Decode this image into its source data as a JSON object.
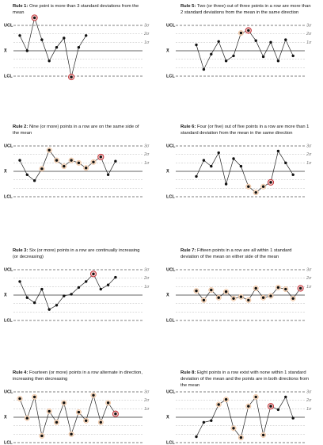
{
  "chart_data": [
    {
      "type": "line",
      "rule": "Rule 1:",
      "title": "One point is more than 3 standard deviations from the mean",
      "values": [
        1.8,
        0,
        3.9,
        1.3,
        -1.2,
        0.4,
        1.5,
        -3.1,
        0.4,
        1.8
      ],
      "highlighted": [
        2,
        7
      ],
      "pattern": [],
      "ylim": [
        -3,
        3
      ],
      "yticks": [
        {
          "value": 3,
          "label": "UCL"
        },
        {
          "value": 0,
          "label": "X̄"
        },
        {
          "value": -3,
          "label": "LCL"
        }
      ],
      "y2ticks": [
        {
          "value": 3,
          "label": "3σ"
        },
        {
          "value": 2,
          "label": "2σ"
        },
        {
          "value": 1,
          "label": "1σ"
        }
      ],
      "grid_lines": [
        2,
        1,
        -1,
        -2
      ]
    },
    {
      "type": "line",
      "rule": "Rule 2:",
      "title": "Nine (or more) points in a row are on the same side of the mean",
      "values": [
        1.3,
        -0.4,
        -1.1,
        0.3,
        2.5,
        1.3,
        0.6,
        1.3,
        1.0,
        0.4,
        1.1,
        1.7,
        -0.4,
        1.2
      ],
      "highlighted": [
        11
      ],
      "pattern": [
        3,
        4,
        5,
        6,
        7,
        8,
        9,
        10
      ],
      "ylim": [
        -3,
        3
      ],
      "yticks": [
        {
          "value": 3,
          "label": "UCL"
        },
        {
          "value": 0,
          "label": "X̄"
        },
        {
          "value": -3,
          "label": "LCL"
        }
      ],
      "y2ticks": [
        {
          "value": 3,
          "label": "3σ"
        },
        {
          "value": 2,
          "label": "2σ"
        },
        {
          "value": 1,
          "label": "1σ"
        }
      ],
      "grid_lines": [
        2,
        1,
        -1,
        -2
      ]
    },
    {
      "type": "line",
      "rule": "Rule 3:",
      "title": "Six (or more) points in a row are continually increasing (or decreasing)",
      "values": [
        1.6,
        -0.3,
        -0.9,
        0.7,
        -1.7,
        -1.2,
        -0.1,
        0.1,
        0.9,
        1.6,
        2.5,
        0.7,
        1.2,
        2.1
      ],
      "highlighted": [
        10
      ],
      "pattern": [],
      "ylim": [
        -3,
        3
      ],
      "yticks": [
        {
          "value": 3,
          "label": "UCL"
        },
        {
          "value": 0,
          "label": "X̄"
        },
        {
          "value": -3,
          "label": "LCL"
        }
      ],
      "y2ticks": [
        {
          "value": 3,
          "label": "3σ"
        },
        {
          "value": 2,
          "label": "2σ"
        },
        {
          "value": 1,
          "label": "1σ"
        }
      ],
      "grid_lines": [
        2,
        1,
        -1,
        -2
      ]
    },
    {
      "type": "line",
      "rule": "Rule 4:",
      "title": "Fourteen (or more) points in a row alternate in direction, increasing then decreasing",
      "values": [
        2.2,
        -0.1,
        2.4,
        -2.2,
        0.7,
        -0.6,
        1.7,
        -2.0,
        0.6,
        -0.4,
        2.6,
        -0.6,
        1.7,
        0.4
      ],
      "highlighted": [
        13
      ],
      "pattern": [
        0,
        1,
        2,
        3,
        4,
        5,
        6,
        7,
        8,
        9,
        10,
        11,
        12
      ],
      "ylim": [
        -3,
        3
      ],
      "yticks": [
        {
          "value": 3,
          "label": "UCL"
        },
        {
          "value": 0,
          "label": "X̄"
        },
        {
          "value": -3,
          "label": "LCL"
        }
      ],
      "y2ticks": [
        {
          "value": 3,
          "label": "3σ"
        },
        {
          "value": 2,
          "label": "2σ"
        },
        {
          "value": 1,
          "label": "1σ"
        }
      ],
      "grid_lines": [
        2,
        1,
        -1,
        -2
      ]
    },
    {
      "type": "line",
      "rule": "Rule 5:",
      "title": "Two (or three) out of three points in a row are more than 2 standard deviations from the mean in the same direction",
      "values": [
        0.7,
        -2.2,
        -0.4,
        1.1,
        -1.2,
        -0.6,
        2.1,
        2.4,
        1.2,
        -0.7,
        1.0,
        -1.2,
        1.3,
        -0.6
      ],
      "highlighted": [
        7
      ],
      "pattern": [
        6
      ],
      "ylim": [
        -3,
        3
      ],
      "yticks": [
        {
          "value": 3,
          "label": "UCL"
        },
        {
          "value": 0,
          "label": "X̄"
        },
        {
          "value": -3,
          "label": "LCL"
        }
      ],
      "y2ticks": [
        {
          "value": 3,
          "label": "3σ"
        },
        {
          "value": 2,
          "label": "2σ"
        },
        {
          "value": 1,
          "label": "1σ"
        }
      ],
      "grid_lines": [
        2,
        1,
        -1,
        -2
      ]
    },
    {
      "type": "line",
      "rule": "Rule 6:",
      "title": "Four (or five) out of five points in a row are more than 1 standard deviation from the mean in the same direction",
      "values": [
        -0.6,
        1.3,
        0.6,
        2.2,
        -1.5,
        1.5,
        0.6,
        -1.8,
        -2.5,
        -1.8,
        -1.3,
        2.4,
        1.0,
        -0.4
      ],
      "highlighted": [
        10
      ],
      "pattern": [
        7,
        8,
        9
      ],
      "ylim": [
        -3,
        3
      ],
      "yticks": [
        {
          "value": 3,
          "label": "UCL"
        },
        {
          "value": 0,
          "label": "X̄"
        },
        {
          "value": -3,
          "label": "LCL"
        }
      ],
      "y2ticks": [
        {
          "value": 3,
          "label": "3σ"
        },
        {
          "value": 2,
          "label": "2σ"
        },
        {
          "value": 1,
          "label": "1σ"
        }
      ],
      "grid_lines": [
        2,
        1,
        -1,
        -2
      ]
    },
    {
      "type": "line",
      "rule": "Rule 7:",
      "title": "Fifteen points in a row are all within 1 standard deviation of the mean on either side of the mean",
      "values": [
        0.5,
        -0.6,
        0.6,
        -0.3,
        0.4,
        -0.4,
        -0.2,
        -0.6,
        0.8,
        -0.3,
        -0.1,
        0.9,
        0.7,
        -0.4,
        0.8
      ],
      "highlighted": [
        14
      ],
      "pattern": [
        0,
        1,
        2,
        3,
        4,
        5,
        6,
        7,
        8,
        9,
        10,
        11,
        12,
        13
      ],
      "ylim": [
        -3,
        3
      ],
      "yticks": [
        {
          "value": 3,
          "label": "UCL"
        },
        {
          "value": 0,
          "label": "X̄"
        },
        {
          "value": -3,
          "label": "LCL"
        }
      ],
      "y2ticks": [
        {
          "value": 3,
          "label": "3σ"
        },
        {
          "value": 2,
          "label": "2σ"
        },
        {
          "value": 1,
          "label": "1σ"
        }
      ],
      "grid_lines": [
        2,
        1,
        -1,
        -2
      ]
    },
    {
      "type": "line",
      "rule": "Rule 8:",
      "title": "Eight points in a row exist with none within 1 standard deviation of the mean and the points are in both directions from the mean",
      "values": [
        -2.3,
        -0.6,
        -0.4,
        1.5,
        2.1,
        -1.3,
        -2.4,
        1.3,
        2.4,
        -2.1,
        1.3,
        0.9,
        2.4,
        -0.1
      ],
      "highlighted": [
        10
      ],
      "pattern": [
        3,
        4,
        5,
        6,
        7,
        8,
        9
      ],
      "ylim": [
        -3,
        3
      ],
      "yticks": [
        {
          "value": 3,
          "label": "UCL"
        },
        {
          "value": 0,
          "label": "X̄"
        },
        {
          "value": -3,
          "label": "LCL"
        }
      ],
      "y2ticks": [
        {
          "value": 3,
          "label": "3σ"
        },
        {
          "value": 2,
          "label": "2σ"
        },
        {
          "value": 1,
          "label": "1σ"
        }
      ],
      "grid_lines": [
        2,
        1,
        -1,
        -2
      ]
    }
  ]
}
